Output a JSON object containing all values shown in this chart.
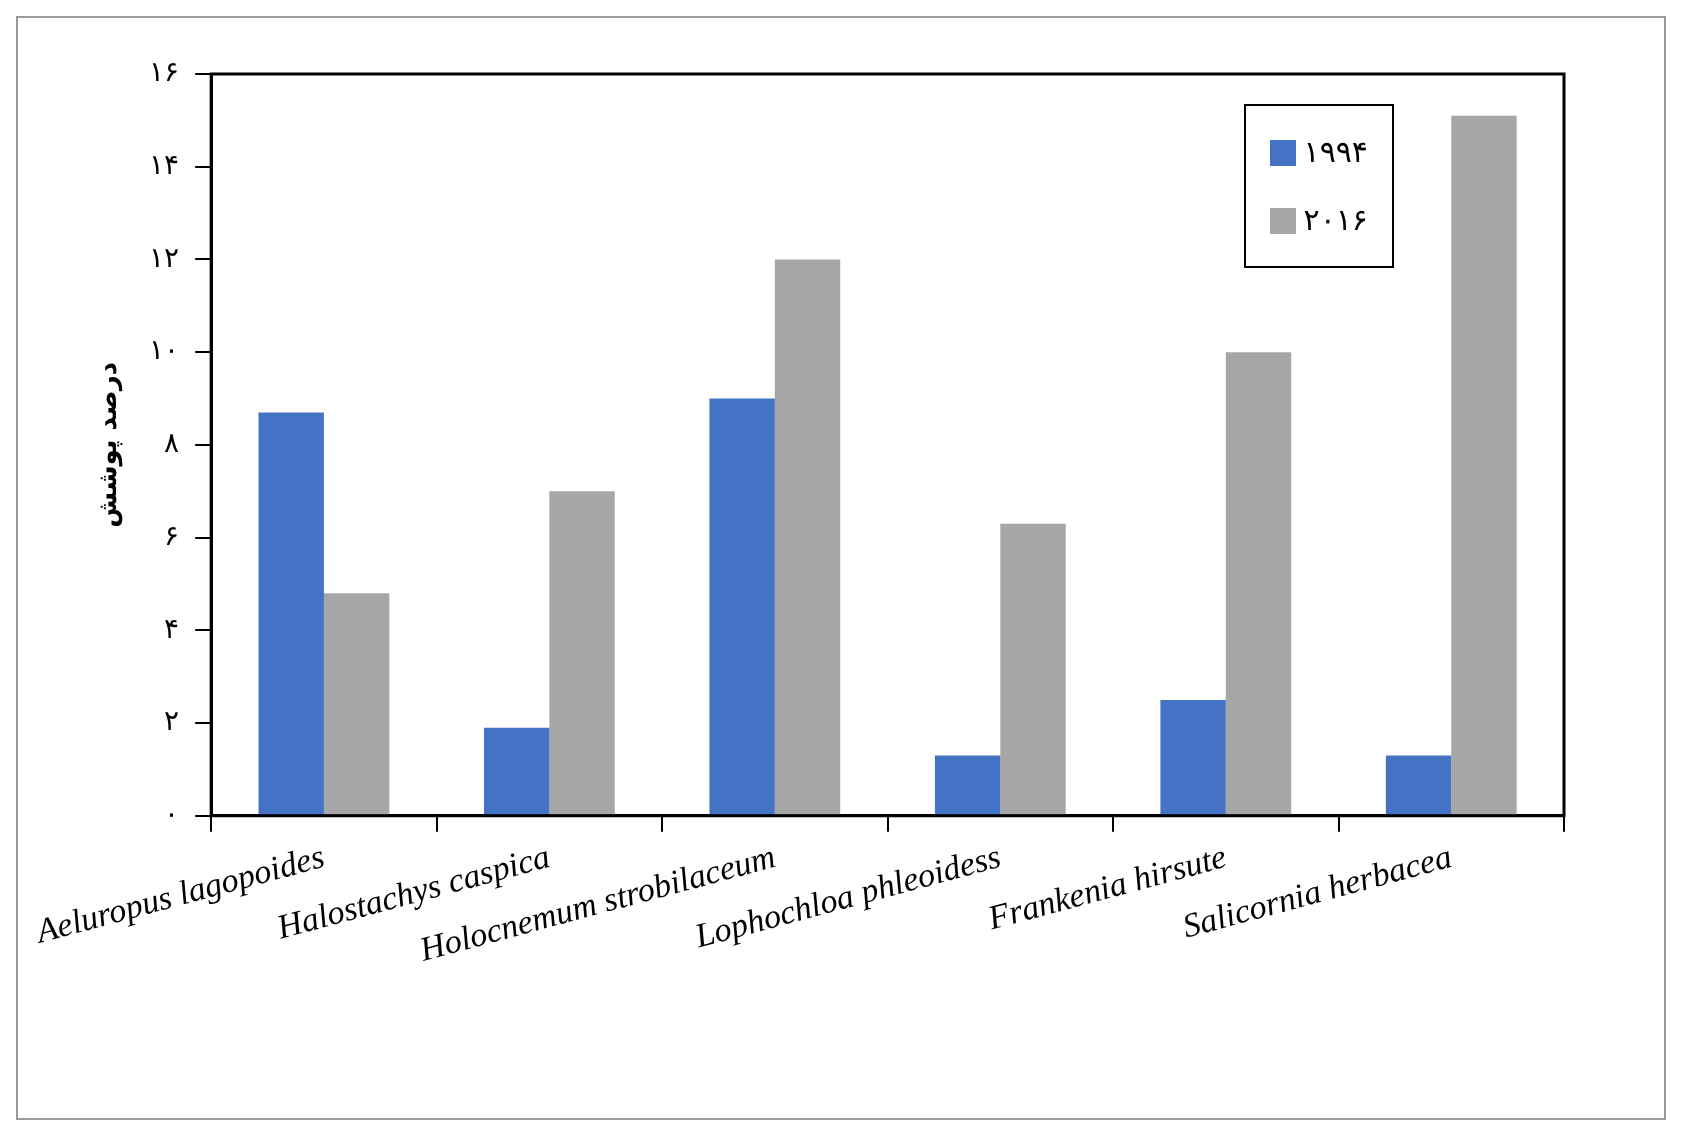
{
  "chart_data": {
    "type": "bar",
    "ylabel": "درصد پوشش",
    "categories": [
      "Aeluropus lagopoides",
      "Halostachys caspica",
      "Holocnemum strobilaceum",
      "Lophochloa phleoidess",
      "Frankenia hirsute",
      "Salicornia herbacea"
    ],
    "series": [
      {
        "name": "۱۹۹۴",
        "color": "#4472c4",
        "values": [
          8.7,
          1.9,
          9.0,
          1.3,
          2.5,
          1.3
        ]
      },
      {
        "name": "۲۰۱۶",
        "color": "#a6a6a6",
        "values": [
          4.8,
          7.0,
          12.0,
          6.3,
          10.0,
          15.1
        ]
      }
    ],
    "ylim": [
      0,
      16
    ],
    "yticks": [
      {
        "value": 0,
        "label": "۰"
      },
      {
        "value": 2,
        "label": "۲"
      },
      {
        "value": 4,
        "label": "۴"
      },
      {
        "value": 6,
        "label": "۶"
      },
      {
        "value": 8,
        "label": "۸"
      },
      {
        "value": 10,
        "label": "۱۰"
      },
      {
        "value": 12,
        "label": "۱۲"
      },
      {
        "value": 14,
        "label": "۱۴"
      },
      {
        "value": 16,
        "label": "۱۶"
      }
    ],
    "grid": false,
    "legend": "top right"
  }
}
